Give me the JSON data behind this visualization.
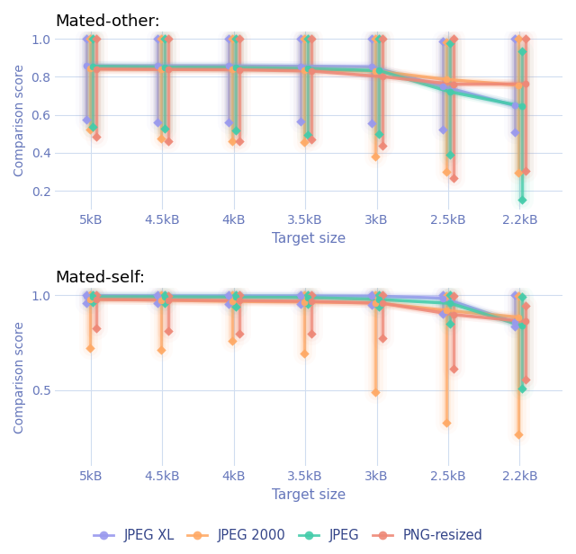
{
  "x_labels": [
    "5kB",
    "4.5kB",
    "4kB",
    "3.5kB",
    "3kB",
    "2.5kB",
    "2.2kB"
  ],
  "x_positions": [
    0,
    1,
    2,
    3,
    4,
    5,
    6
  ],
  "colors": {
    "jpeg_xl": "#9999ee",
    "jpeg2000": "#ffaa66",
    "jpeg": "#44ccaa",
    "png_resized": "#ee8877"
  },
  "offsets": [
    -0.07,
    -0.02,
    0.03,
    0.08
  ],
  "mated_other": {
    "jpeg_xl": {
      "mean": [
        0.857,
        0.857,
        0.857,
        0.855,
        0.852,
        0.748,
        0.648
      ],
      "min": [
        0.575,
        0.562,
        0.558,
        0.566,
        0.554,
        0.522,
        0.508
      ],
      "max": [
        1.0,
        1.0,
        1.0,
        1.0,
        1.0,
        0.985,
        1.0
      ]
    },
    "jpeg2000": {
      "mean": [
        0.842,
        0.84,
        0.84,
        0.835,
        0.83,
        0.785,
        0.755
      ],
      "min": [
        0.524,
        0.476,
        0.462,
        0.456,
        0.378,
        0.3,
        0.295
      ],
      "max": [
        1.0,
        1.0,
        1.0,
        1.0,
        1.0,
        0.98,
        1.0
      ]
    },
    "jpeg": {
      "mean": [
        0.855,
        0.85,
        0.848,
        0.842,
        0.832,
        0.72,
        0.645
      ],
      "min": [
        0.535,
        0.525,
        0.518,
        0.493,
        0.5,
        0.39,
        0.155
      ],
      "max": [
        1.0,
        1.0,
        1.0,
        1.0,
        0.998,
        0.975,
        0.935
      ]
    },
    "png_resized": {
      "mean": [
        0.84,
        0.838,
        0.836,
        0.83,
        0.8,
        0.76,
        0.762
      ],
      "min": [
        0.485,
        0.462,
        0.462,
        0.47,
        0.438,
        0.268,
        0.302
      ],
      "max": [
        1.0,
        1.0,
        1.0,
        1.0,
        1.0,
        1.0,
        1.0
      ]
    }
  },
  "mated_self": {
    "jpeg_xl": {
      "mean": [
        0.998,
        0.997,
        0.997,
        0.997,
        0.996,
        0.985,
        0.858
      ],
      "min": [
        0.96,
        0.958,
        0.955,
        0.955,
        0.948,
        0.9,
        0.838
      ],
      "max": [
        1.0,
        1.0,
        1.0,
        1.0,
        1.0,
        1.0,
        1.0
      ]
    },
    "jpeg2000": {
      "mean": [
        0.98,
        0.975,
        0.968,
        0.965,
        0.96,
        0.92,
        0.885
      ],
      "min": [
        0.72,
        0.712,
        0.758,
        0.695,
        0.488,
        0.328,
        0.27
      ],
      "max": [
        1.0,
        1.0,
        1.0,
        1.0,
        1.0,
        0.998,
        0.998
      ]
    },
    "jpeg": {
      "mean": [
        0.992,
        0.992,
        0.99,
        0.988,
        0.978,
        0.958,
        0.84
      ],
      "min": [
        0.962,
        0.96,
        0.942,
        0.956,
        0.94,
        0.85,
        0.51
      ],
      "max": [
        1.0,
        1.0,
        1.0,
        1.0,
        1.0,
        1.0,
        0.99
      ]
    },
    "png_resized": {
      "mean": [
        0.978,
        0.975,
        0.972,
        0.968,
        0.958,
        0.898,
        0.862
      ],
      "min": [
        0.825,
        0.812,
        0.8,
        0.8,
        0.775,
        0.612,
        0.555
      ],
      "max": [
        1.0,
        0.998,
        1.0,
        1.0,
        1.0,
        0.998,
        0.945
      ]
    }
  },
  "legend_labels": [
    "JPEG XL",
    "JPEG 2000",
    "JPEG",
    "PNG-resized"
  ],
  "legend_keys": [
    "jpeg_xl",
    "jpeg2000",
    "jpeg",
    "png_resized"
  ],
  "subplot_titles": [
    "Mated-other:",
    "Mated-self:"
  ],
  "subplot_keys": [
    "mated_other",
    "mated_self"
  ],
  "mated_other_ylim": [
    0.1,
    1.04
  ],
  "mated_other_yticks": [
    0.2,
    0.4,
    0.6,
    0.8,
    1.0
  ],
  "mated_self_ylim": [
    0.1,
    1.04
  ],
  "mated_self_yticks": [
    0.5,
    1.0
  ],
  "xlabel": "Target size",
  "ylabel": "Comparison score",
  "tick_color": "#6677bb",
  "label_color": "#6677bb",
  "grid_color": "#d0ddf0",
  "bg_color": "#ffffff",
  "fig_bg_color": "#ffffff"
}
